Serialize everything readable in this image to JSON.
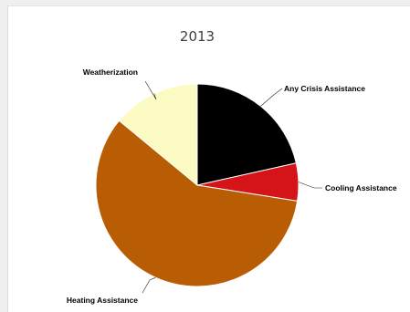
{
  "chart_data": {
    "type": "pie",
    "title": "2013",
    "series": [
      {
        "values": [
          {
            "label": "Any Crisis Assistance",
            "value": 21.5,
            "color": "#000000"
          },
          {
            "label": "Cooling Assistance",
            "value": 6.0,
            "color": "#d41418"
          },
          {
            "label": "Heating Assistance",
            "value": 58.5,
            "color": "#b85d04"
          },
          {
            "label": "Weatherization",
            "value": 14.0,
            "color": "#fdfbc4"
          }
        ]
      }
    ],
    "legend": "none",
    "data_labels": "outside-with-connectors"
  }
}
